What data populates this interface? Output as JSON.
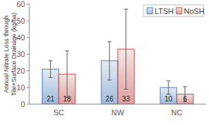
{
  "chart_data": {
    "type": "bar",
    "ylabel": "Annual Nitrate Loss through\nTile+Surface Drainage (kg/ha)",
    "categories": [
      "SC",
      "NW",
      "NC"
    ],
    "series": [
      {
        "name": "LTSH",
        "color": "#4f81bd",
        "values": [
          21,
          26,
          10
        ],
        "errors": [
          5,
          11.5,
          4
        ]
      },
      {
        "name": "NoSH",
        "color": "#c0504d",
        "values": [
          18,
          33,
          6
        ],
        "errors": [
          14,
          24,
          4.5
        ]
      }
    ],
    "ylim": [
      0,
      60
    ],
    "yticks": [
      0,
      10,
      20,
      30,
      40,
      50,
      60
    ],
    "grid": false,
    "legend": "upper right",
    "data_labels": true
  }
}
